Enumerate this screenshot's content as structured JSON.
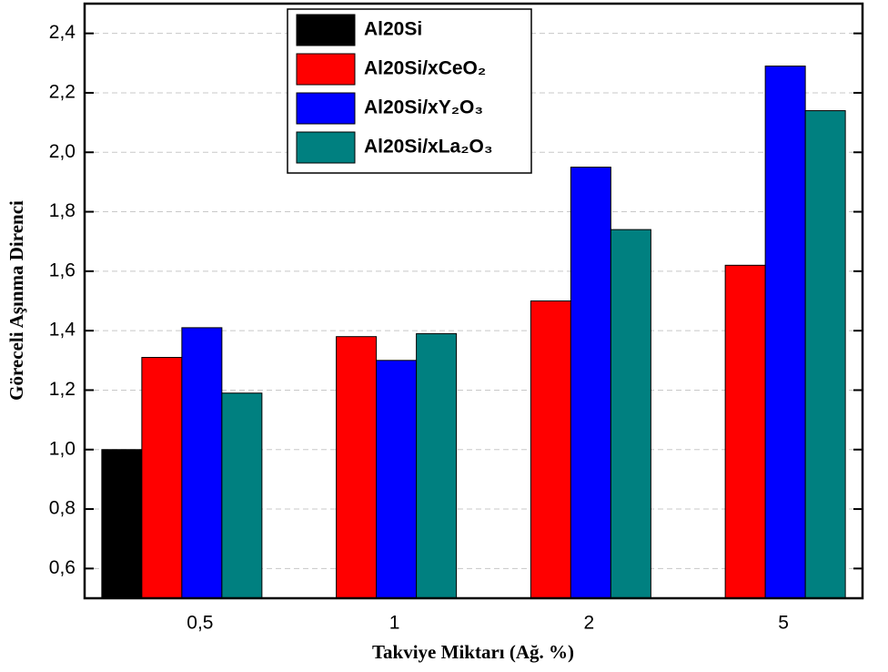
{
  "chart_data": {
    "type": "bar",
    "x_label": "Takviye Miktarı  (Ağ. %)",
    "y_label": "Göreceli Aşınma Direnci",
    "categories": [
      "0,5",
      "1",
      "2",
      "5"
    ],
    "series": [
      {
        "name": "Al20Si",
        "color": "#000000",
        "values": [
          1.0,
          null,
          null,
          null
        ]
      },
      {
        "name": "Al20Si/xCeO₂",
        "color": "#ff0000",
        "values": [
          1.31,
          1.38,
          1.5,
          1.62
        ]
      },
      {
        "name": "Al20Si/xY₂O₃",
        "color": "#0000ff",
        "values": [
          1.41,
          1.3,
          1.95,
          2.29
        ]
      },
      {
        "name": "Al20Si/xLa₂O₃",
        "color": "#008080",
        "values": [
          1.19,
          1.39,
          1.74,
          2.14
        ]
      }
    ],
    "ylim": [
      0.5,
      2.5
    ],
    "yticks": [
      {
        "value": 0.6,
        "label": "0,6"
      },
      {
        "value": 0.8,
        "label": "0,8"
      },
      {
        "value": 1.0,
        "label": "1,0"
      },
      {
        "value": 1.2,
        "label": "1,2"
      },
      {
        "value": 1.4,
        "label": "1,4"
      },
      {
        "value": 1.6,
        "label": "1,6"
      },
      {
        "value": 1.8,
        "label": "1,8"
      },
      {
        "value": 2.0,
        "label": "2,0"
      },
      {
        "value": 2.2,
        "label": "2,2"
      },
      {
        "value": 2.4,
        "label": "2,4"
      }
    ],
    "grid": true,
    "legend": "top-center"
  }
}
